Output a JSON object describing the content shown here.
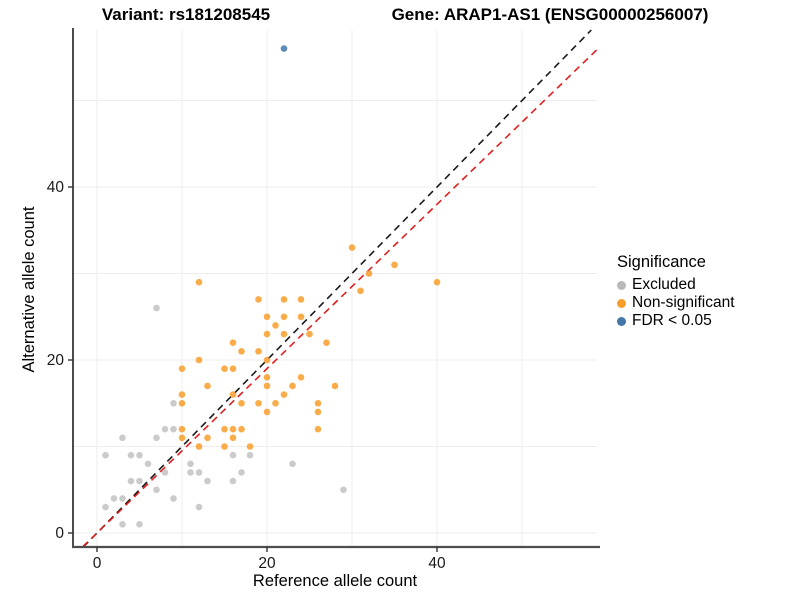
{
  "title_left": "Variant: rs181208545",
  "title_right": "Gene: ARAP1-AS1 (ENSG00000256007)",
  "axes": {
    "x_label": "Reference allele count",
    "y_label": "Alternative allele count",
    "x_ticks": [
      0,
      20,
      40
    ],
    "y_ticks": [
      0,
      20,
      40
    ]
  },
  "legend": {
    "title": "Significance",
    "items": [
      {
        "label": "Excluded",
        "color": "#b9b9b9"
      },
      {
        "label": "Non-significant",
        "color": "#f89d29"
      },
      {
        "label": "FDR < 0.05",
        "color": "#4377aa"
      }
    ]
  },
  "chart_data": {
    "type": "scatter",
    "title": "Variant: rs181208545 | Gene: ARAP1-AS1 (ENSG00000256007)",
    "xlabel": "Reference allele count",
    "ylabel": "Alternative allele count",
    "xlim": [
      -2.8,
      58.8
    ],
    "ylim": [
      -1.6,
      58.2
    ],
    "grid": "light gray lines every 10 units, white background, black left/bottom axis lines",
    "legend_position": "right",
    "reference_lines": [
      {
        "name": "identity-line",
        "slope": 1,
        "intercept": 0,
        "style": "dashed",
        "color": "#1a1a1a"
      },
      {
        "name": "fitted-ratio-line",
        "slope": 0.95,
        "intercept": 0,
        "style": "dashed",
        "color": "#e01f1f"
      }
    ],
    "series": [
      {
        "name": "Excluded",
        "color": "#b9b9b9",
        "opacity": 0.75,
        "points": [
          [
            7,
            26
          ],
          [
            9,
            15
          ],
          [
            8,
            12
          ],
          [
            9,
            12
          ],
          [
            3,
            11
          ],
          [
            7,
            11
          ],
          [
            1,
            9
          ],
          [
            4,
            9
          ],
          [
            5,
            9
          ],
          [
            6,
            8
          ],
          [
            11,
            8
          ],
          [
            11,
            7
          ],
          [
            8,
            7
          ],
          [
            12,
            7
          ],
          [
            4,
            6
          ],
          [
            5,
            6
          ],
          [
            13,
            6
          ],
          [
            16,
            6
          ],
          [
            16,
            9
          ],
          [
            18,
            9
          ],
          [
            17,
            7
          ],
          [
            7,
            5
          ],
          [
            9,
            4
          ],
          [
            2,
            4
          ],
          [
            3,
            4
          ],
          [
            1,
            3
          ],
          [
            12,
            3
          ],
          [
            3,
            1
          ],
          [
            5,
            1
          ],
          [
            23,
            8
          ],
          [
            29,
            5
          ]
        ]
      },
      {
        "name": "Non-significant",
        "color": "#f89d29",
        "opacity": 0.85,
        "points": [
          [
            12,
            29
          ],
          [
            30,
            33
          ],
          [
            35,
            31
          ],
          [
            32,
            30
          ],
          [
            40,
            29
          ],
          [
            31,
            28
          ],
          [
            19,
            27
          ],
          [
            22,
            27
          ],
          [
            24,
            27
          ],
          [
            20,
            25
          ],
          [
            22,
            25
          ],
          [
            24,
            25
          ],
          [
            21,
            24
          ],
          [
            20,
            23
          ],
          [
            22,
            23
          ],
          [
            25,
            23
          ],
          [
            16,
            22
          ],
          [
            27,
            22
          ],
          [
            17,
            21
          ],
          [
            19,
            21
          ],
          [
            12,
            20
          ],
          [
            20,
            20
          ],
          [
            10,
            19
          ],
          [
            15,
            19
          ],
          [
            16,
            19
          ],
          [
            20,
            18
          ],
          [
            24,
            18
          ],
          [
            13,
            17
          ],
          [
            20,
            17
          ],
          [
            23,
            17
          ],
          [
            28,
            17
          ],
          [
            10,
            16
          ],
          [
            16,
            16
          ],
          [
            22,
            16
          ],
          [
            17,
            15
          ],
          [
            19,
            15
          ],
          [
            21,
            15
          ],
          [
            26,
            15
          ],
          [
            10,
            15
          ],
          [
            20,
            14
          ],
          [
            26,
            14
          ],
          [
            15,
            12
          ],
          [
            16,
            12
          ],
          [
            17,
            12
          ],
          [
            26,
            12
          ],
          [
            10,
            12
          ],
          [
            10,
            11
          ],
          [
            13,
            11
          ],
          [
            16,
            11
          ],
          [
            15,
            10
          ],
          [
            18,
            10
          ],
          [
            12,
            10
          ]
        ]
      },
      {
        "name": "FDR < 0.05",
        "color": "#4377aa",
        "opacity": 0.85,
        "points": [
          [
            22,
            56
          ]
        ]
      }
    ]
  }
}
